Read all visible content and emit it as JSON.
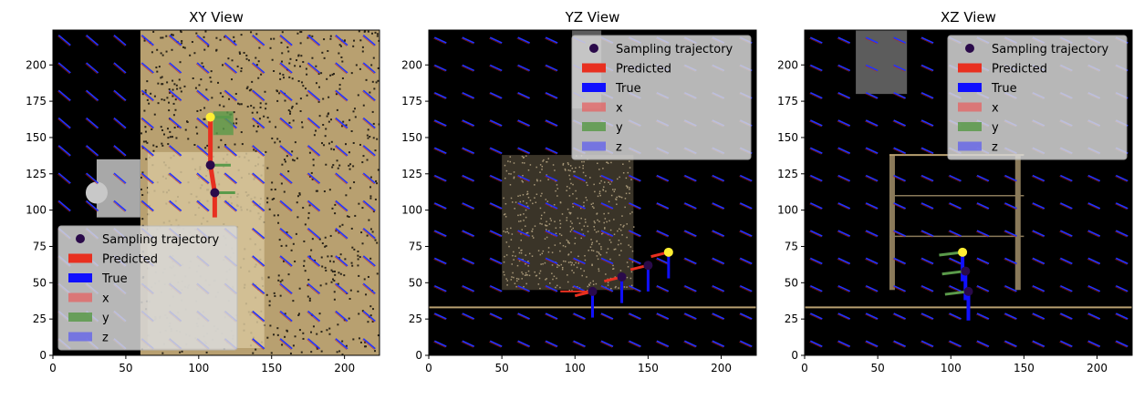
{
  "figure": {
    "legend_labels": [
      "Sampling trajectory",
      "Predicted",
      "True",
      "x",
      "y",
      "z"
    ]
  },
  "colors": {
    "background": "#000000",
    "predicted": "#e83020",
    "true": "#1010ff",
    "x": "#e06c6c",
    "y": "#5a9a4a",
    "z": "#6a6ae8",
    "trajectory": "#2a0a4a",
    "quiver": "#2233ff",
    "table": "#b8a070",
    "legend_bg": "#d8d8d8"
  },
  "chart_data": [
    {
      "type": "scatter",
      "title": "XY View",
      "xlim": [
        0,
        224
      ],
      "ylim": [
        0,
        224
      ],
      "xticks": [
        0,
        50,
        100,
        150,
        200
      ],
      "yticks": [
        0,
        25,
        50,
        75,
        100,
        125,
        150,
        175,
        200
      ],
      "legend_position": "lower-left",
      "series": [
        {
          "name": "Sampling trajectory",
          "points": [
            [
              108,
              164
            ],
            [
              108,
              131
            ],
            [
              111,
              112
            ]
          ]
        },
        {
          "name": "Predicted",
          "points": [
            [
              108,
              164
            ],
            [
              108,
              131
            ],
            [
              111,
              112
            ],
            [
              111,
              95
            ]
          ]
        },
        {
          "name": "True",
          "points": []
        },
        {
          "name": "x",
          "points": []
        },
        {
          "name": "y",
          "points": []
        },
        {
          "name": "z",
          "points": []
        }
      ]
    },
    {
      "type": "scatter",
      "title": "YZ View",
      "xlim": [
        0,
        224
      ],
      "ylim": [
        0,
        224
      ],
      "xticks": [
        0,
        50,
        100,
        150,
        200
      ],
      "yticks": [
        0,
        25,
        50,
        75,
        100,
        125,
        150,
        175,
        200
      ],
      "legend_position": "upper-right",
      "series": [
        {
          "name": "Sampling trajectory",
          "points": [
            [
              164,
              71
            ],
            [
              150,
              62
            ],
            [
              132,
              54
            ],
            [
              112,
              44
            ]
          ]
        },
        {
          "name": "Predicted",
          "points": []
        },
        {
          "name": "True",
          "points": []
        },
        {
          "name": "x",
          "points": []
        },
        {
          "name": "y",
          "points": []
        },
        {
          "name": "z",
          "points": []
        }
      ]
    },
    {
      "type": "scatter",
      "title": "XZ View",
      "xlim": [
        0,
        224
      ],
      "ylim": [
        0,
        224
      ],
      "xticks": [
        0,
        50,
        100,
        150,
        200
      ],
      "yticks": [
        0,
        25,
        50,
        75,
        100,
        125,
        150,
        175,
        200
      ],
      "legend_position": "upper-right",
      "series": [
        {
          "name": "Sampling trajectory",
          "points": [
            [
              108,
              71
            ],
            [
              110,
              58
            ],
            [
              112,
              44
            ]
          ]
        },
        {
          "name": "Predicted",
          "points": []
        },
        {
          "name": "True",
          "points": []
        },
        {
          "name": "x",
          "points": []
        },
        {
          "name": "y",
          "points": []
        },
        {
          "name": "z",
          "points": []
        }
      ]
    }
  ]
}
